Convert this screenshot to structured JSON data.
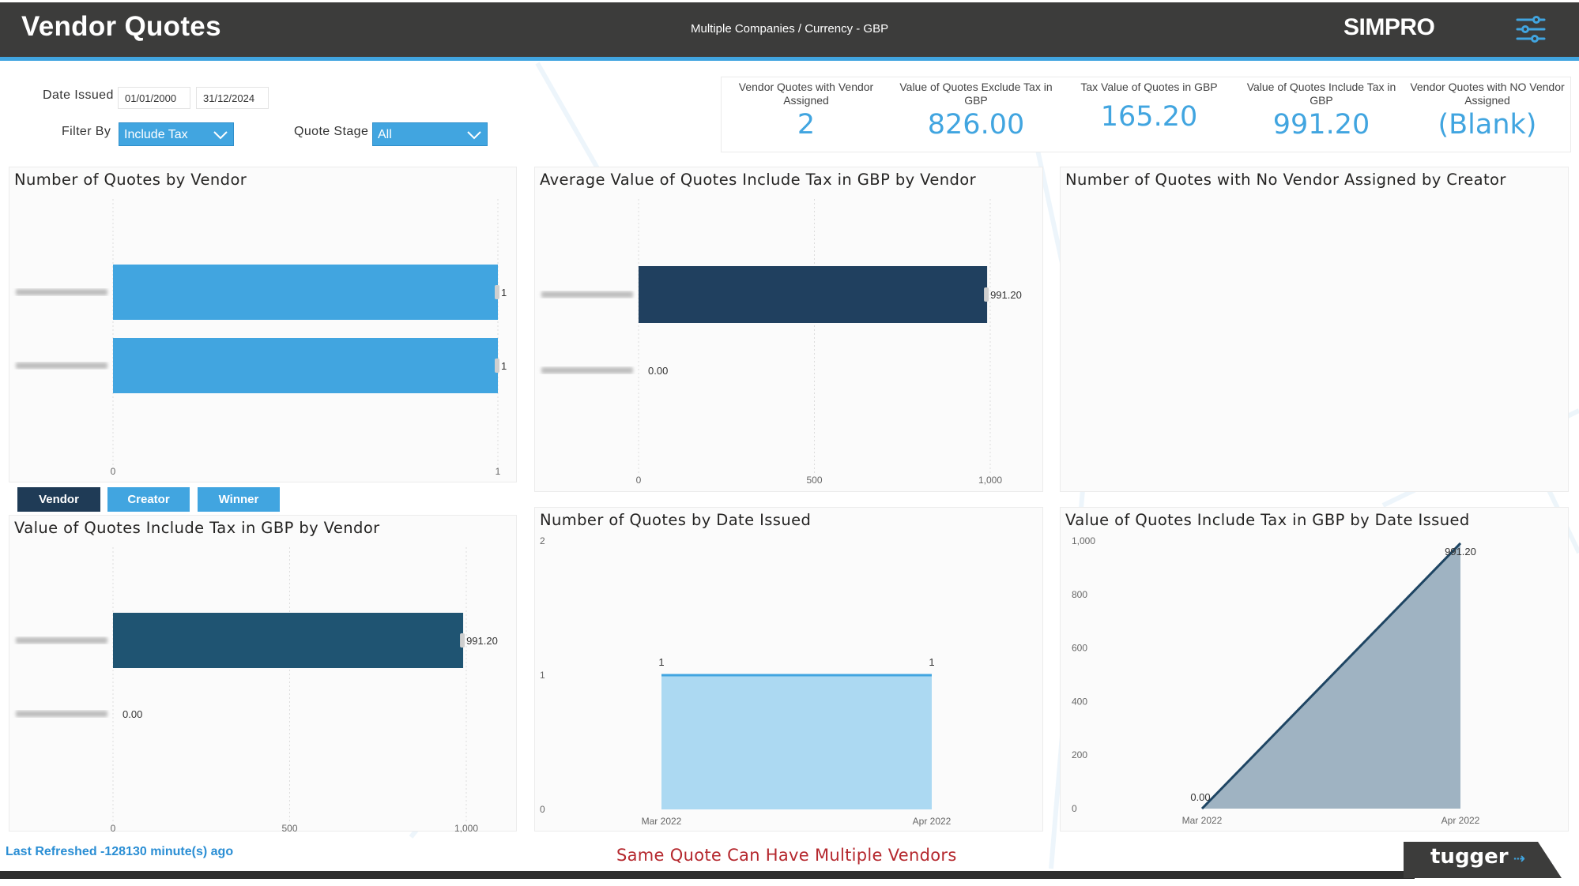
{
  "header": {
    "title": "Vendor Quotes",
    "subtitle": "Multiple Companies / Currency - GBP",
    "brand": "SIMPRO",
    "menu_icon": "sliders-menu-icon"
  },
  "filters": {
    "date_label": "Date Issued",
    "date_from": "01/01/2000",
    "date_to": "31/12/2024",
    "filter_by_label": "Filter By",
    "filter_by_value": "Include Tax",
    "quote_stage_label": "Quote Stage",
    "quote_stage_value": "All"
  },
  "kpis": [
    {
      "label": "Vendor Quotes with Vendor Assigned",
      "value": "2"
    },
    {
      "label": "Value of Quotes Exclude Tax in GBP",
      "value": "826.00"
    },
    {
      "label": "Tax Value of Quotes in GBP",
      "value": "165.20"
    },
    {
      "label": "Value of Quotes Include Tax in GBP",
      "value": "991.20"
    },
    {
      "label": "Vendor Quotes with NO Vendor Assigned",
      "value": "(Blank)"
    }
  ],
  "toggles": {
    "vendor": "Vendor",
    "creator": "Creator",
    "winner": "Winner",
    "active": "vendor"
  },
  "colors": {
    "accent": "#41a5e0",
    "dark_bar": "#20405f",
    "dark_teal_bar": "#1f5472",
    "light_area": "#acd9f2",
    "grey_area": "#9fb3c2",
    "header_bg": "#3c3c3b",
    "warning_text": "#b5282e"
  },
  "chart_data": [
    {
      "id": "quotes_by_vendor",
      "type": "bar",
      "orientation": "horizontal",
      "title": "Number of Quotes by Vendor",
      "categories": [
        "",
        ""
      ],
      "values": [
        1,
        1
      ],
      "data_labels": [
        "1",
        "1"
      ],
      "xlim": [
        0,
        1
      ],
      "x_ticks": [
        "0",
        "1"
      ],
      "color": "#41a5e0"
    },
    {
      "id": "avg_value_by_vendor",
      "type": "bar",
      "orientation": "horizontal",
      "title": "Average Value of Quotes Include Tax in GBP by Vendor",
      "categories": [
        "",
        ""
      ],
      "values": [
        991.2,
        0
      ],
      "data_labels": [
        "991.20",
        "0.00"
      ],
      "xlim": [
        0,
        1000
      ],
      "x_ticks": [
        "0",
        "500",
        "1,000"
      ],
      "color": "#20405f"
    },
    {
      "id": "no_vendor_by_creator",
      "type": "bar",
      "title": "Number of Quotes with No Vendor Assigned by Creator",
      "categories": [],
      "values": []
    },
    {
      "id": "value_by_vendor",
      "type": "bar",
      "orientation": "horizontal",
      "title": "Value of Quotes Include Tax in GBP by Vendor",
      "categories": [
        "",
        ""
      ],
      "values": [
        991.2,
        0
      ],
      "data_labels": [
        "991.20",
        "0.00"
      ],
      "xlim": [
        0,
        1000
      ],
      "x_ticks": [
        "0",
        "500",
        "1,000"
      ],
      "color": "#1f5472"
    },
    {
      "id": "quotes_by_date",
      "type": "area",
      "title": "Number of Quotes by Date Issued",
      "x": [
        "Mar 2022",
        "Apr 2022"
      ],
      "values": [
        1,
        1
      ],
      "data_labels": [
        "1",
        "1"
      ],
      "ylim": [
        0,
        2
      ],
      "y_ticks": [
        "0",
        "1",
        "2"
      ],
      "color": "#acd9f2",
      "line_color": "#41a5e0"
    },
    {
      "id": "value_by_date",
      "type": "area",
      "title": "Value of Quotes Include Tax in GBP by Date Issued",
      "x": [
        "Mar 2022",
        "Apr 2022"
      ],
      "values": [
        0,
        991.2
      ],
      "data_labels": [
        "0.00",
        "991.20"
      ],
      "ylim": [
        0,
        1000
      ],
      "y_ticks": [
        "0",
        "200",
        "400",
        "600",
        "800",
        "1,000"
      ],
      "color": "#9fb3c2",
      "line_color": "#1e4563"
    }
  ],
  "footer": {
    "last_refreshed": "Last Refreshed -128130 minute(s) ago",
    "note": "Same Quote Can Have Multiple Vendors",
    "logo": "tugger"
  }
}
